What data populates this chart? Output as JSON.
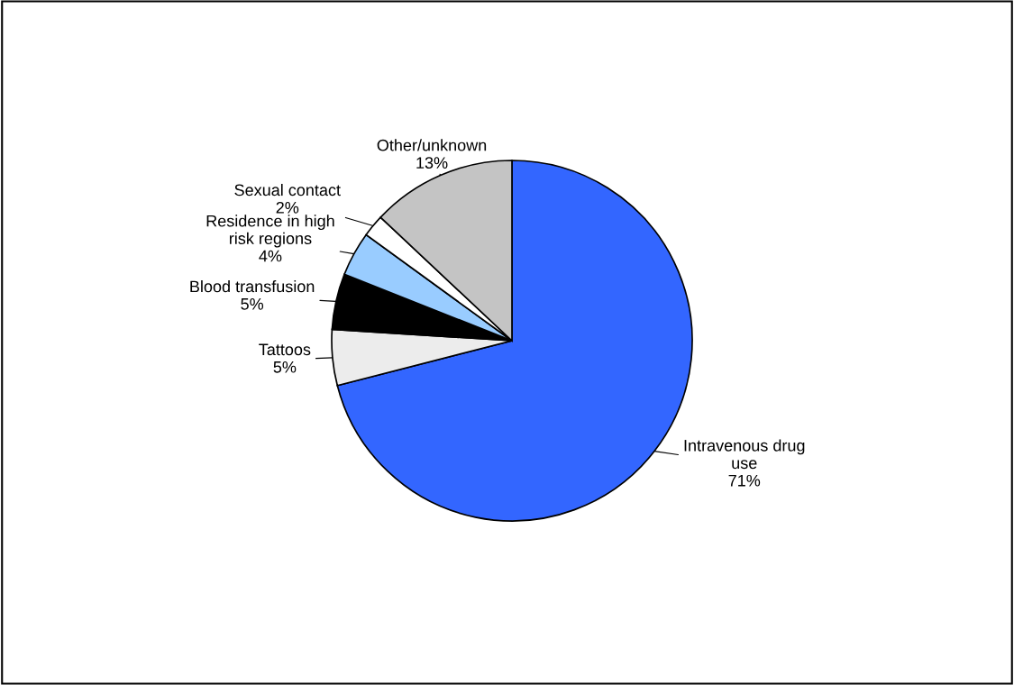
{
  "chart_data": {
    "type": "pie",
    "categories": [
      "Intravenous drug\nuse",
      "Tattoos",
      "Blood transfusion",
      "Residence in high\nrisk regions",
      "Sexual contact",
      "Other/unknown"
    ],
    "values": [
      71,
      5,
      5,
      4,
      2,
      13
    ],
    "colors": [
      "#3366ff",
      "#ececec",
      "#000000",
      "#99ccff",
      "#ffffff",
      "#c4c4c4"
    ],
    "value_labels": [
      "71%",
      "5%",
      "5%",
      "4%",
      "2%",
      "13%"
    ]
  }
}
